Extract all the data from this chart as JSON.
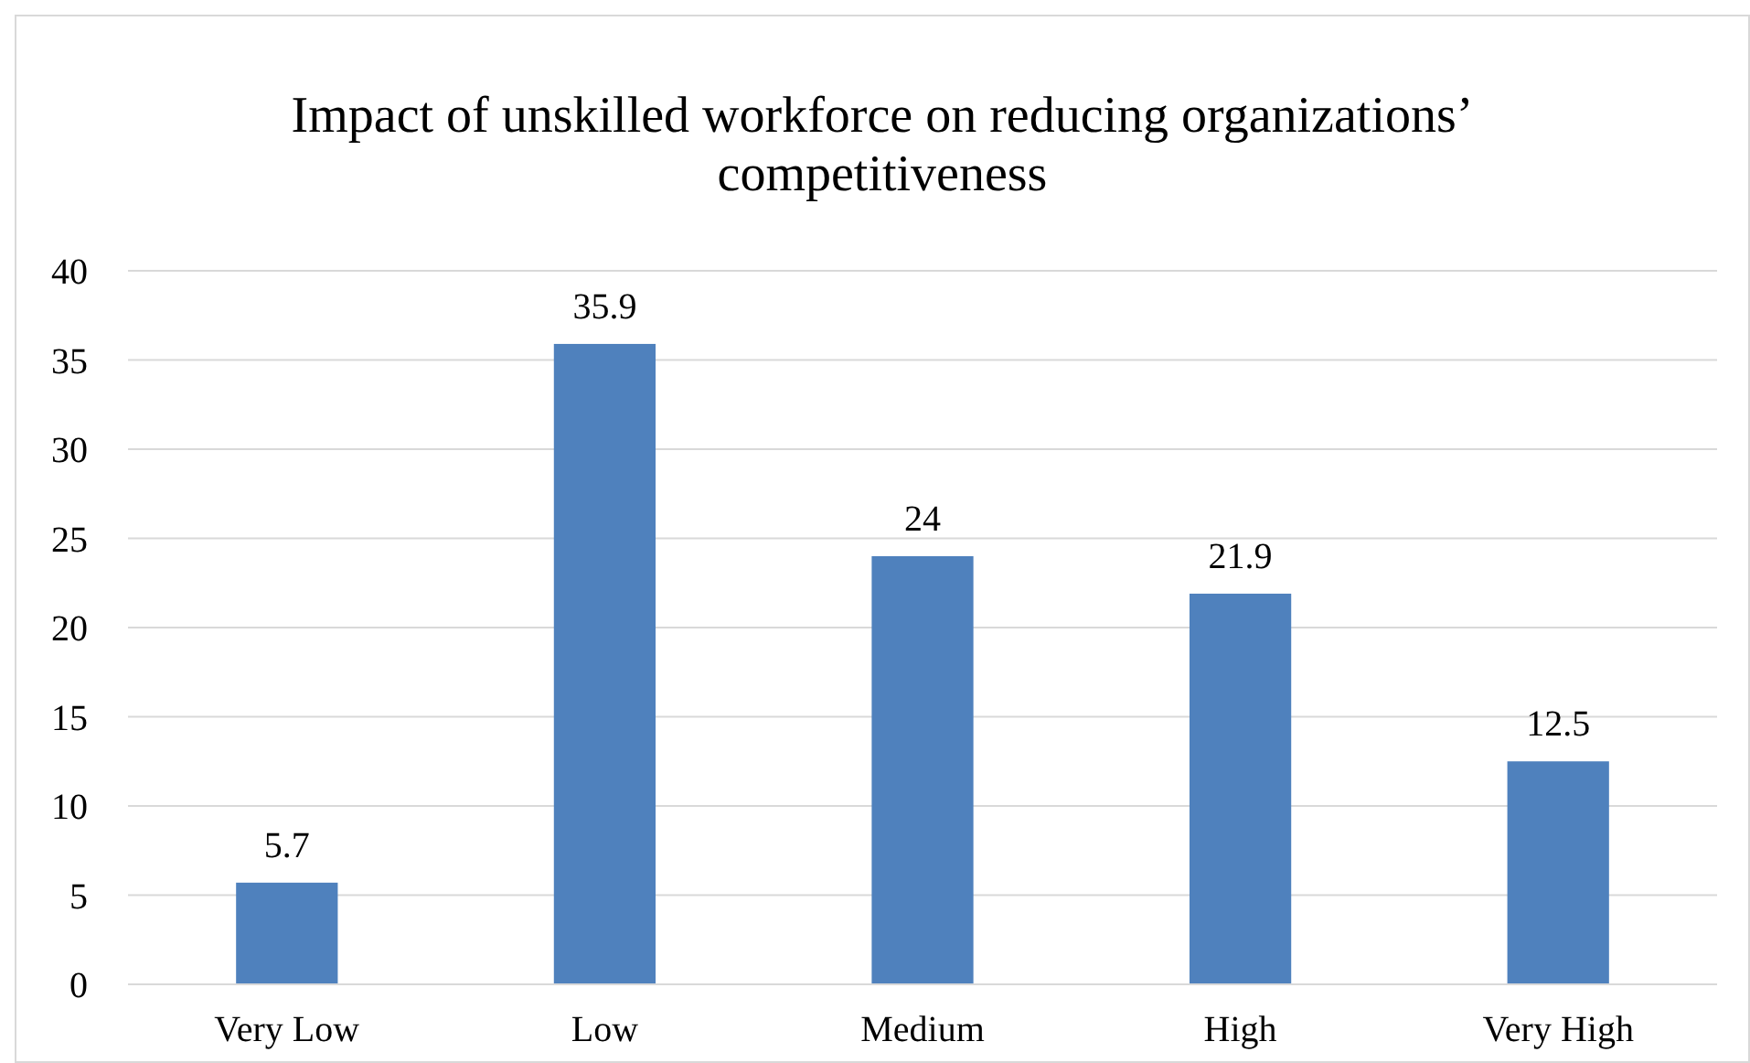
{
  "chart_data": {
    "type": "bar",
    "title": "Impact of unskilled workforce on reducing organizations’ competitiveness",
    "categories": [
      "Very Low",
      "Low",
      "Medium",
      "High",
      "Very High"
    ],
    "values": [
      5.7,
      35.9,
      24,
      21.9,
      12.5
    ],
    "color": "#4f81bd",
    "ylim": [
      0,
      40
    ],
    "yticks": [
      0,
      5,
      10,
      15,
      20,
      25,
      30,
      35,
      40
    ],
    "grid": "y",
    "data_labels": true
  }
}
